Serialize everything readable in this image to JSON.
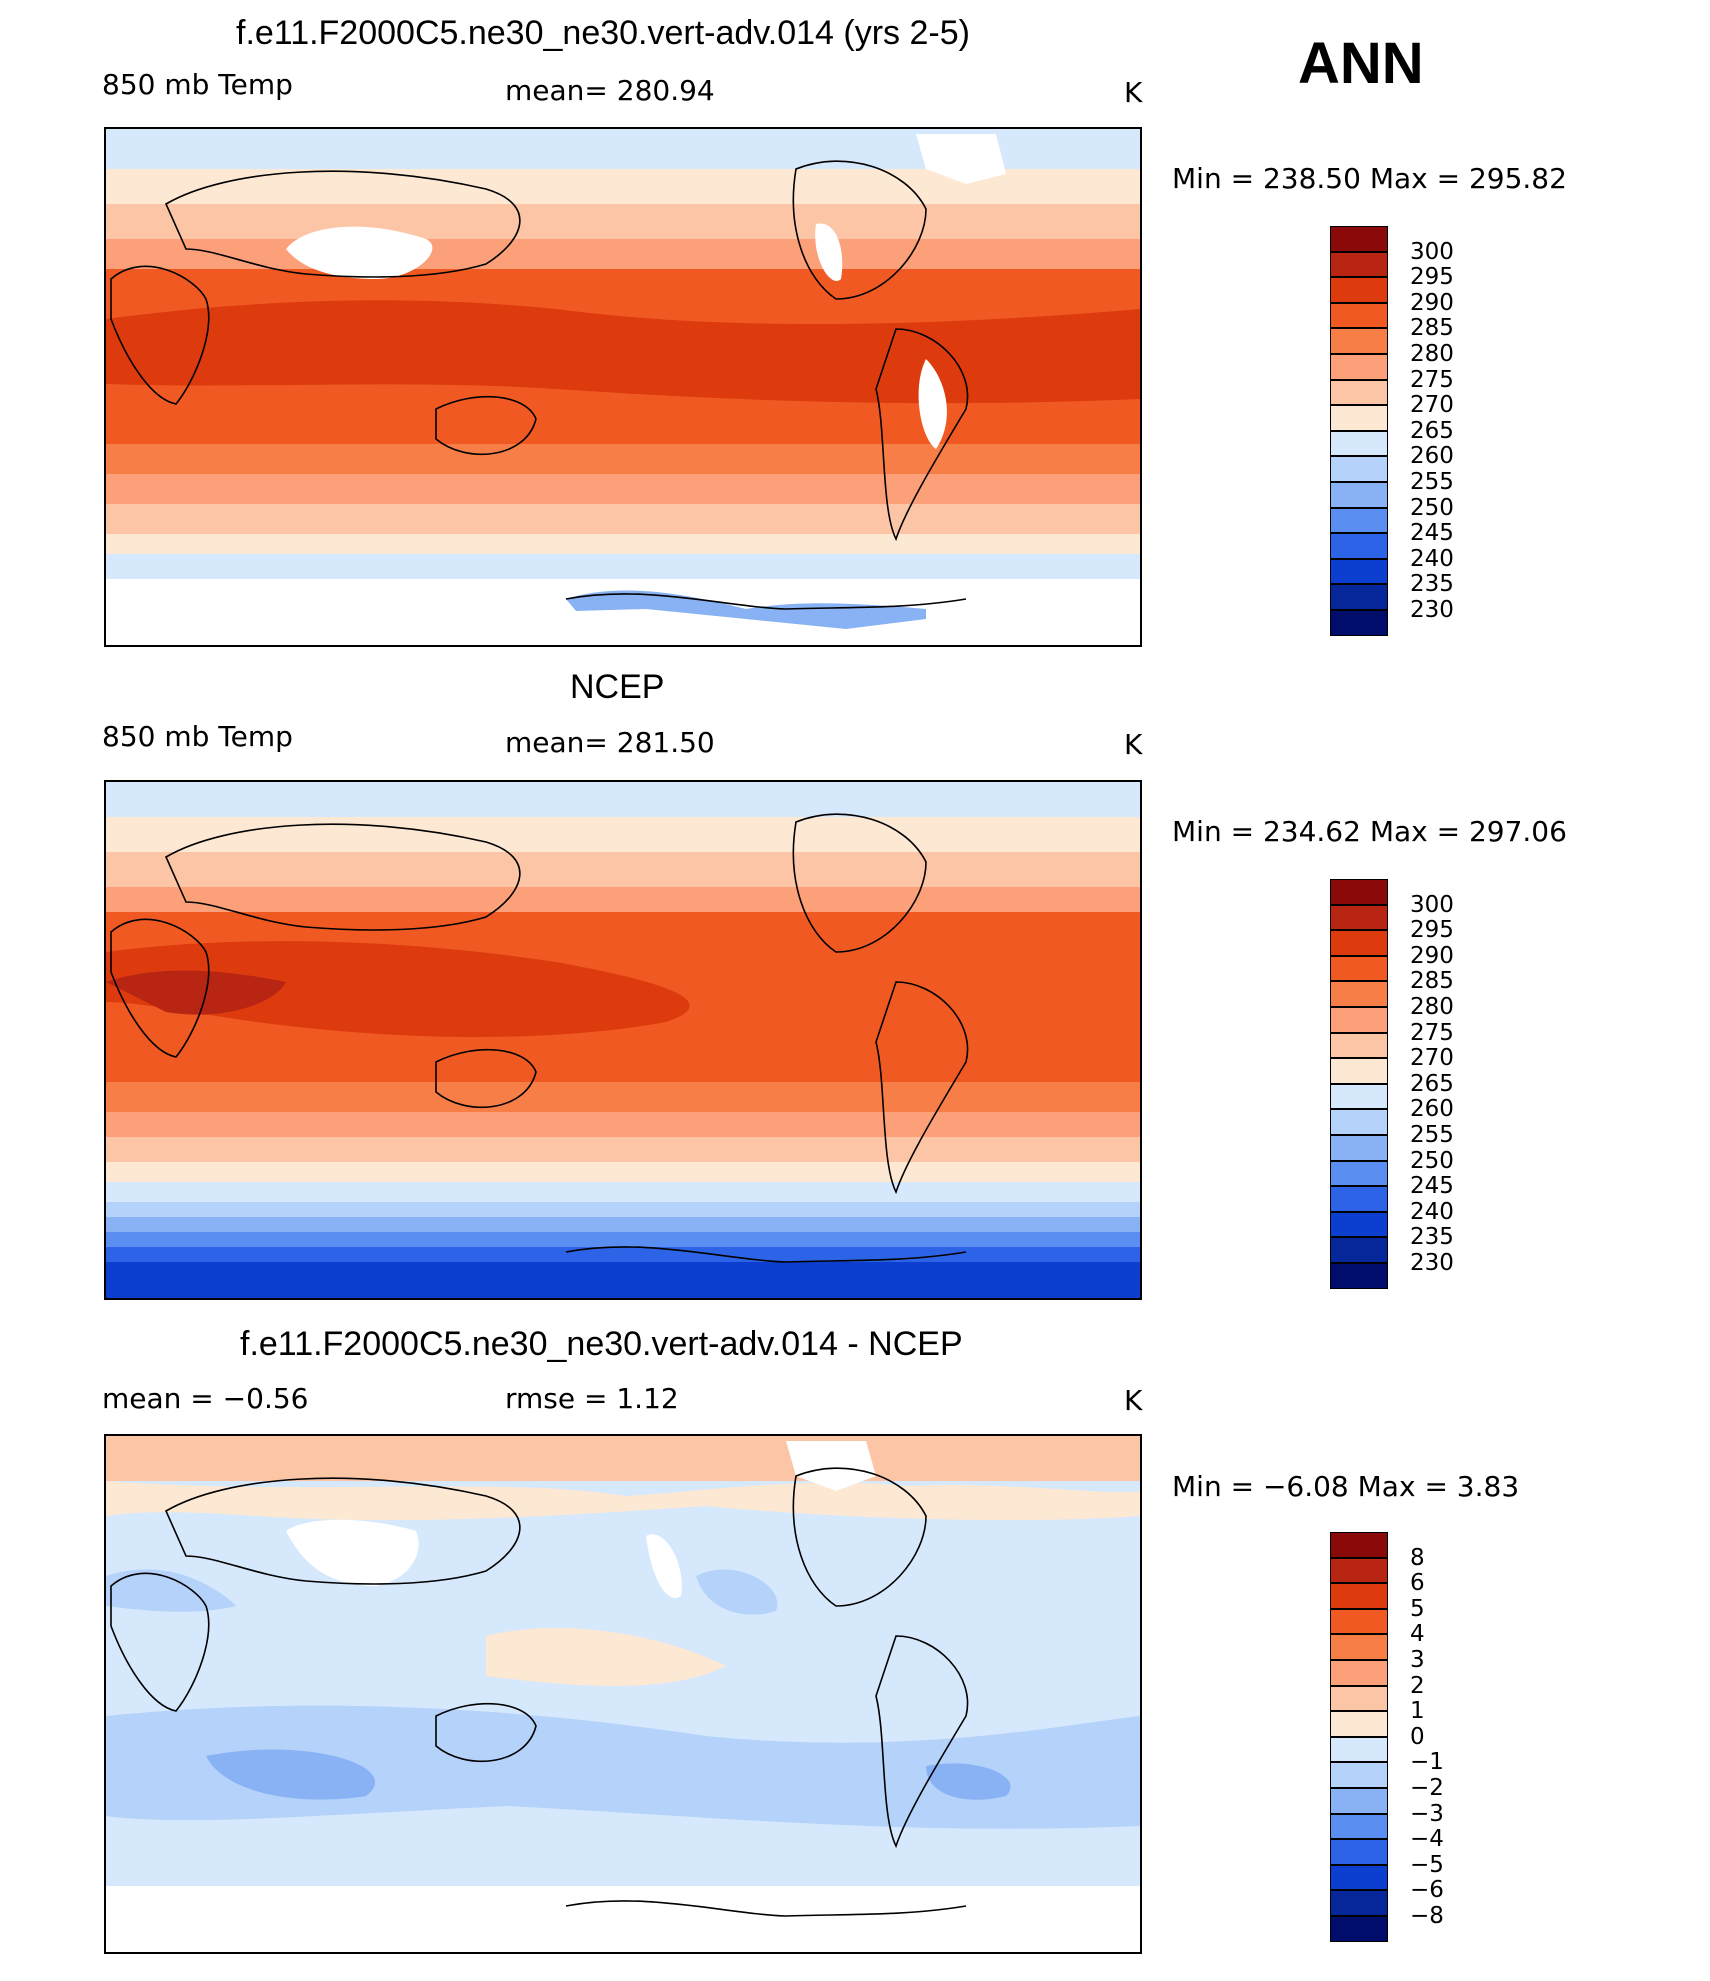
{
  "season": "ANN",
  "panels": [
    {
      "id": "model",
      "title": "f.e11.F2000C5.ne30_ne30.vert-adv.014 (yrs 2-5)",
      "left_label": "850 mb Temp",
      "center_label": "mean=  280.94",
      "units": "K",
      "minmax": "Min  =  238.50  Max  =  295.82",
      "colorbar_labels": [
        "300",
        "295",
        "290",
        "285",
        "280",
        "275",
        "270",
        "265",
        "260",
        "255",
        "250",
        "245",
        "240",
        "235",
        "230"
      ],
      "colors": [
        "#8a0a0a",
        "#b82512",
        "#dd3b0e",
        "#f05a22",
        "#f77f47",
        "#fba079",
        "#fcc6a6",
        "#fde8d4",
        "#d6e8fb",
        "#b4d2fa",
        "#89b2f5",
        "#5a8ef0",
        "#2d63e6",
        "#0c3fcf",
        "#05279a",
        "#000d6a"
      ]
    },
    {
      "id": "obs",
      "title": "NCEP",
      "left_label": "850 mb Temp",
      "center_label": "mean=  281.50",
      "units": "K",
      "minmax": "Min  =  234.62  Max  =  297.06",
      "colorbar_labels": [
        "300",
        "295",
        "290",
        "285",
        "280",
        "275",
        "270",
        "265",
        "260",
        "255",
        "250",
        "245",
        "240",
        "235",
        "230"
      ],
      "colors": [
        "#8a0a0a",
        "#b82512",
        "#dd3b0e",
        "#f05a22",
        "#f77f47",
        "#fba079",
        "#fcc6a6",
        "#fde8d4",
        "#d6e8fb",
        "#b4d2fa",
        "#89b2f5",
        "#5a8ef0",
        "#2d63e6",
        "#0c3fcf",
        "#05279a",
        "#000d6a"
      ]
    },
    {
      "id": "diff",
      "title": "f.e11.F2000C5.ne30_ne30.vert-adv.014 - NCEP",
      "left_label": "mean  =    −0.56",
      "center_label": "rmse  =     1.12",
      "units": "K",
      "minmax": "Min  =    −6.08  Max  =     3.83",
      "colorbar_labels": [
        "8",
        "6",
        "5",
        "4",
        "3",
        "2",
        "1",
        "0",
        "−1",
        "−2",
        "−3",
        "−4",
        "−5",
        "−6",
        "−8"
      ],
      "colors": [
        "#8a0a0a",
        "#b82512",
        "#dd3b0e",
        "#f05a22",
        "#f77f47",
        "#fba079",
        "#fcc6a6",
        "#fde8d4",
        "#d6e8fb",
        "#b4d2fa",
        "#89b2f5",
        "#5a8ef0",
        "#2d63e6",
        "#0c3fcf",
        "#05279a",
        "#000d6a"
      ]
    }
  ]
}
